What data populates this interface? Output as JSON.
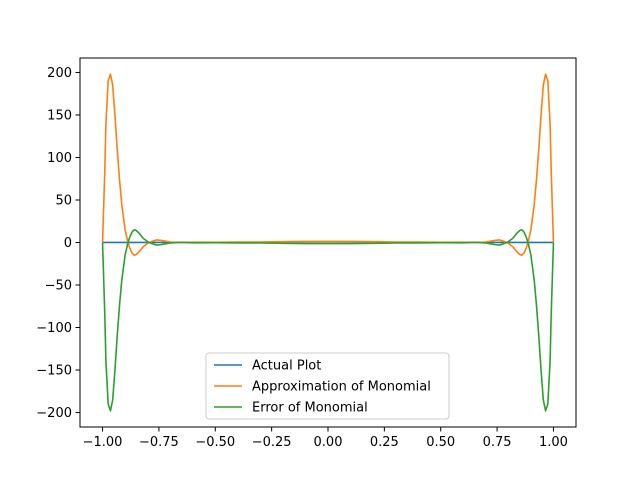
{
  "chart_data": {
    "type": "line",
    "title": "",
    "xlabel": "",
    "ylabel": "",
    "xlim": [
      -1.1,
      1.1
    ],
    "ylim": [
      -217,
      217
    ],
    "grid": false,
    "legend_placement": "lower-center",
    "x_ticks": [
      -1.0,
      -0.75,
      -0.5,
      -0.25,
      0.0,
      0.25,
      0.5,
      0.75,
      1.0
    ],
    "x_tick_labels": [
      "−1.00",
      "−0.75",
      "−0.50",
      "−0.25",
      "0.00",
      "0.25",
      "0.50",
      "0.75",
      "1.00"
    ],
    "y_ticks": [
      -200,
      -150,
      -100,
      -50,
      0,
      50,
      100,
      150,
      200
    ],
    "y_tick_labels": [
      "−200",
      "−150",
      "−100",
      "−50",
      "0",
      "50",
      "100",
      "150",
      "200"
    ],
    "series": [
      {
        "name": "Actual Plot",
        "color": "#1f77b4",
        "x": [
          -1.0,
          -0.9,
          -0.8,
          -0.7,
          -0.6,
          -0.5,
          -0.4,
          -0.3,
          -0.2,
          -0.1,
          0.0,
          0.1,
          0.2,
          0.3,
          0.4,
          0.5,
          0.6,
          0.7,
          0.8,
          0.9,
          1.0
        ],
        "y": [
          0.04,
          0.05,
          0.06,
          0.08,
          0.1,
          0.14,
          0.2,
          0.31,
          0.5,
          0.8,
          1.0,
          0.8,
          0.5,
          0.31,
          0.2,
          0.14,
          0.1,
          0.08,
          0.06,
          0.05,
          0.04
        ]
      },
      {
        "name": "Approximation of Monomial",
        "color": "#ff7f0e",
        "x": [
          -1.0,
          -0.99,
          -0.985,
          -0.975,
          -0.965,
          -0.955,
          -0.945,
          -0.935,
          -0.925,
          -0.915,
          -0.9,
          -0.89,
          -0.88,
          -0.87,
          -0.86,
          -0.85,
          -0.835,
          -0.82,
          -0.8,
          -0.78,
          -0.76,
          -0.74,
          -0.72,
          -0.7,
          -0.65,
          -0.6,
          -0.5,
          -0.4,
          -0.3,
          -0.2,
          -0.1,
          0.0,
          0.1,
          0.2,
          0.3,
          0.4,
          0.5,
          0.6,
          0.65,
          0.7,
          0.72,
          0.74,
          0.76,
          0.78,
          0.8,
          0.82,
          0.835,
          0.85,
          0.86,
          0.87,
          0.88,
          0.89,
          0.9,
          0.915,
          0.925,
          0.935,
          0.945,
          0.955,
          0.965,
          0.975,
          0.985,
          0.99,
          1.0
        ],
        "y": [
          0.0,
          85.0,
          140.0,
          190.0,
          198.0,
          185.0,
          150.0,
          110.0,
          75.0,
          45.0,
          15.0,
          3.0,
          -6.0,
          -12.0,
          -15.0,
          -14.0,
          -10.0,
          -5.0,
          -1.0,
          1.5,
          3.0,
          2.5,
          1.5,
          0.5,
          -0.3,
          0.4,
          0.2,
          0.5,
          0.6,
          0.9,
          1.3,
          1.2,
          1.3,
          0.9,
          0.6,
          0.5,
          0.2,
          0.4,
          -0.3,
          0.5,
          1.5,
          2.5,
          3.0,
          1.5,
          -1.0,
          -5.0,
          -10.0,
          -14.0,
          -15.0,
          -12.0,
          -6.0,
          3.0,
          15.0,
          45.0,
          75.0,
          110.0,
          150.0,
          185.0,
          198.0,
          190.0,
          140.0,
          85.0,
          0.0
        ]
      },
      {
        "name": "Error of Monomial",
        "color": "#2ca02c",
        "x": [
          -1.0,
          -0.99,
          -0.985,
          -0.975,
          -0.965,
          -0.955,
          -0.945,
          -0.935,
          -0.925,
          -0.915,
          -0.9,
          -0.89,
          -0.88,
          -0.87,
          -0.86,
          -0.85,
          -0.835,
          -0.82,
          -0.8,
          -0.78,
          -0.76,
          -0.74,
          -0.72,
          -0.7,
          -0.65,
          -0.6,
          -0.5,
          -0.4,
          -0.3,
          -0.2,
          -0.1,
          0.0,
          0.1,
          0.2,
          0.3,
          0.4,
          0.5,
          0.6,
          0.65,
          0.7,
          0.72,
          0.74,
          0.76,
          0.78,
          0.8,
          0.82,
          0.835,
          0.85,
          0.86,
          0.87,
          0.88,
          0.89,
          0.9,
          0.915,
          0.925,
          0.935,
          0.945,
          0.955,
          0.965,
          0.975,
          0.985,
          0.99,
          1.0
        ],
        "y": [
          0.0,
          -85.0,
          -140.0,
          -190.0,
          -198.0,
          -185.0,
          -150.0,
          -110.0,
          -75.0,
          -45.0,
          -15.0,
          -3.0,
          6.0,
          12.0,
          15.0,
          14.0,
          10.0,
          5.0,
          1.0,
          -1.5,
          -3.0,
          -2.5,
          -1.5,
          -0.5,
          0.3,
          -0.4,
          -0.2,
          -0.5,
          -0.6,
          -0.9,
          -1.3,
          -1.2,
          -1.3,
          -0.9,
          -0.6,
          -0.5,
          -0.2,
          -0.4,
          0.3,
          -0.5,
          -1.5,
          -2.5,
          -3.0,
          -1.5,
          1.0,
          5.0,
          10.0,
          14.0,
          15.0,
          12.0,
          6.0,
          -3.0,
          -15.0,
          -45.0,
          -75.0,
          -110.0,
          -150.0,
          -185.0,
          -198.0,
          -190.0,
          -140.0,
          -85.0,
          0.0
        ]
      }
    ]
  }
}
